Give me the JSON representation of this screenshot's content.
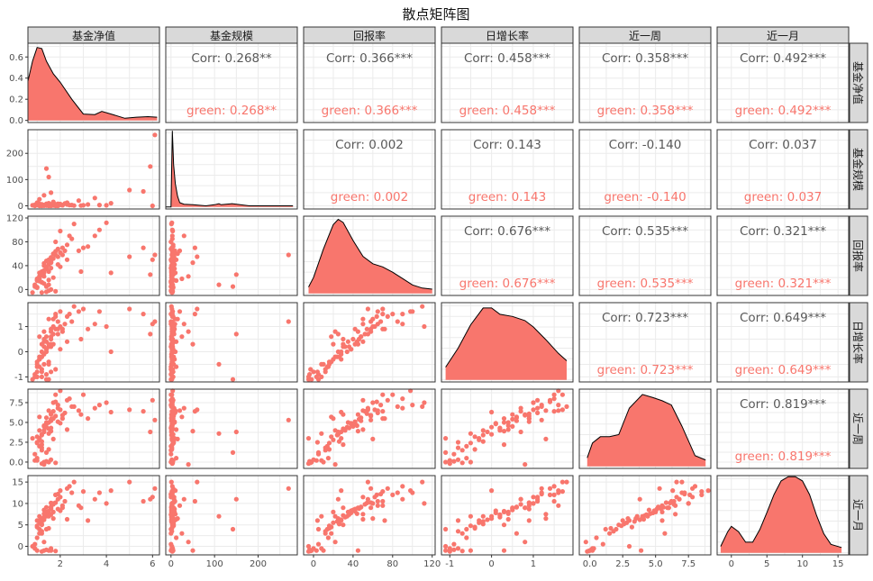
{
  "chart_data": {
    "type": "scatter",
    "title": "散点矩阵图",
    "variables": [
      "基金净值",
      "基金规模",
      "回报率",
      "日增长率",
      "近一周",
      "近一月"
    ],
    "series": [
      {
        "name": "green",
        "color": "#F8766D"
      }
    ],
    "colors": {
      "series": "#F8766D",
      "corr_overall": "#595959",
      "strip_bg": "#D9D9D9",
      "grid": "#EBEBEB",
      "panel_border": "#333333"
    },
    "grid": true,
    "axis_ranges": [
      [
        0.6,
        6.3
      ],
      [
        -12,
        290
      ],
      [
        -10,
        123
      ],
      [
        -1.2,
        1.95
      ],
      [
        -0.8,
        9.2
      ],
      [
        -2,
        16.5
      ]
    ],
    "diag_y_range": [
      -0.02,
      0.73
    ],
    "ticks": {
      "x": [
        [
          2,
          4,
          6
        ],
        [
          0,
          100,
          200
        ],
        [
          0,
          40,
          80,
          120
        ],
        [
          -1,
          0,
          1
        ],
        [
          0.0,
          2.5,
          5.0,
          7.5
        ],
        [
          0,
          5,
          10,
          15
        ]
      ],
      "x_labels": [
        [
          "2",
          "4",
          "6"
        ],
        [
          "0",
          "100",
          "200"
        ],
        [
          "0",
          "40",
          "80",
          "120"
        ],
        [
          "-1",
          "0",
          "1"
        ],
        [
          "0.0",
          "2.5",
          "5.0",
          "7.5"
        ],
        [
          "0",
          "5",
          "10",
          "15"
        ]
      ],
      "diag_y": [
        0.0,
        0.2,
        0.4,
        0.6
      ],
      "diag_y_labels": [
        "0.0",
        "0.2",
        "0.4",
        "0.6"
      ],
      "y": [
        null,
        [
          0,
          100,
          200
        ],
        [
          0,
          40,
          80,
          120
        ],
        [
          -1,
          0,
          1
        ],
        [
          0.0,
          2.5,
          5.0,
          7.5
        ],
        [
          0,
          5,
          10,
          15
        ]
      ],
      "y_labels": [
        null,
        [
          "0",
          "100",
          "200"
        ],
        [
          "0",
          "40",
          "80",
          "120"
        ],
        [
          "-1",
          "0",
          "1"
        ],
        [
          "0.0",
          "2.5",
          "5.0",
          "7.5"
        ],
        [
          "0",
          "5",
          "10",
          "15"
        ]
      ]
    },
    "correlations": [
      {
        "row": 0,
        "col": 1,
        "corr": "Corr: 0.268**",
        "group": "green: 0.268**"
      },
      {
        "row": 0,
        "col": 2,
        "corr": "Corr: 0.366***",
        "group": "green: 0.366***"
      },
      {
        "row": 0,
        "col": 3,
        "corr": "Corr: 0.458***",
        "group": "green: 0.458***"
      },
      {
        "row": 0,
        "col": 4,
        "corr": "Corr: 0.358***",
        "group": "green: 0.358***"
      },
      {
        "row": 0,
        "col": 5,
        "corr": "Corr: 0.492***",
        "group": "green: 0.492***"
      },
      {
        "row": 1,
        "col": 2,
        "corr": "Corr: 0.002",
        "group": "green: 0.002"
      },
      {
        "row": 1,
        "col": 3,
        "corr": "Corr: 0.143",
        "group": "green: 0.143"
      },
      {
        "row": 1,
        "col": 4,
        "corr": "Corr: -0.140",
        "group": "green: -0.140"
      },
      {
        "row": 1,
        "col": 5,
        "corr": "Corr: 0.037",
        "group": "green: 0.037"
      },
      {
        "row": 2,
        "col": 3,
        "corr": "Corr: 0.676***",
        "group": "green: 0.676***"
      },
      {
        "row": 2,
        "col": 4,
        "corr": "Corr: 0.535***",
        "group": "green: 0.535***"
      },
      {
        "row": 2,
        "col": 5,
        "corr": "Corr: 0.321***",
        "group": "green: 0.321***"
      },
      {
        "row": 3,
        "col": 4,
        "corr": "Corr: 0.723***",
        "group": "green: 0.723***"
      },
      {
        "row": 3,
        "col": 5,
        "corr": "Corr: 0.649***",
        "group": "green: 0.649***"
      },
      {
        "row": 4,
        "col": 5,
        "corr": "Corr: 0.819***",
        "group": "green: 0.819***"
      }
    ],
    "densities": [
      {
        "x": [
          0.6,
          0.8,
          1.0,
          1.2,
          1.4,
          1.7,
          2.0,
          2.5,
          3.0,
          3.5,
          3.8,
          4.2,
          4.8,
          5.3,
          5.8,
          6.2
        ],
        "y": [
          0.37,
          0.56,
          0.69,
          0.68,
          0.56,
          0.44,
          0.36,
          0.2,
          0.06,
          0.055,
          0.085,
          0.06,
          0.02,
          0.03,
          0.035,
          0.03
        ]
      },
      {
        "x": [
          -12,
          0,
          3,
          6,
          10,
          15,
          20,
          30,
          50,
          80,
          100,
          110,
          115,
          140,
          180,
          230,
          280
        ],
        "y": [
          0.0,
          0.0,
          0.72,
          0.4,
          0.22,
          0.1,
          0.04,
          0.025,
          0.02,
          0.01,
          0.02,
          0.03,
          0.02,
          0.03,
          0.01,
          0.01,
          0.01
        ]
      },
      {
        "x": [
          -5,
          0,
          10,
          20,
          25,
          30,
          40,
          50,
          60,
          70,
          80,
          90,
          100,
          110,
          120
        ],
        "y": [
          0.06,
          0.15,
          0.42,
          0.65,
          0.7,
          0.67,
          0.5,
          0.35,
          0.28,
          0.25,
          0.2,
          0.14,
          0.08,
          0.05,
          0.04
        ]
      },
      {
        "x": [
          -1.1,
          -0.8,
          -0.5,
          -0.2,
          0.0,
          0.2,
          0.5,
          0.8,
          1.0,
          1.3,
          1.6,
          1.8
        ],
        "y": [
          0.12,
          0.3,
          0.52,
          0.68,
          0.68,
          0.62,
          0.6,
          0.56,
          0.5,
          0.38,
          0.25,
          0.18
        ]
      },
      {
        "x": [
          -0.2,
          0.2,
          0.8,
          1.5,
          2.2,
          3.0,
          4.0,
          4.8,
          5.5,
          6.2,
          7.0,
          8.0,
          8.8
        ],
        "y": [
          0.08,
          0.22,
          0.28,
          0.28,
          0.3,
          0.55,
          0.68,
          0.65,
          0.62,
          0.58,
          0.38,
          0.1,
          0.06
        ]
      },
      {
        "x": [
          -1.5,
          -0.5,
          0.0,
          1.0,
          2.0,
          3.0,
          4.0,
          5.0,
          6.0,
          7.0,
          8.0,
          9.0,
          10.0,
          11.0,
          12.0,
          13.0,
          14.0,
          15.5
        ],
        "y": [
          0.06,
          0.2,
          0.25,
          0.2,
          0.1,
          0.1,
          0.22,
          0.38,
          0.55,
          0.68,
          0.72,
          0.72,
          0.68,
          0.55,
          0.35,
          0.18,
          0.08,
          0.05
        ]
      }
    ],
    "observations": [
      [
        1.0,
        5,
        4,
        -0.8,
        2.5,
        6.0
      ],
      [
        1.2,
        3,
        30,
        0.3,
        2.2,
        5.0
      ],
      [
        0.8,
        2,
        -5,
        -1.1,
        3.0,
        0.0
      ],
      [
        1.5,
        10,
        50,
        1.3,
        6.5,
        7.5
      ],
      [
        1.3,
        1,
        10,
        -0.5,
        0.0,
        -1.0
      ],
      [
        1.8,
        0,
        80,
        1.5,
        8.5,
        12.0
      ],
      [
        2.0,
        4,
        98,
        1.6,
        9.0,
        13.0
      ],
      [
        1.1,
        2,
        22,
        -0.2,
        4.0,
        7.0
      ],
      [
        1.4,
        8,
        35,
        0.4,
        5.0,
        8.0
      ],
      [
        1.6,
        6,
        45,
        0.8,
        6.0,
        9.0
      ],
      [
        1.0,
        12,
        15,
        -0.6,
        0.5,
        2.0
      ],
      [
        1.7,
        3,
        60,
        1.0,
        7.5,
        10.0
      ],
      [
        2.1,
        2,
        70,
        0.9,
        5.5,
        9.5
      ],
      [
        1.2,
        5,
        25,
        0.0,
        3.5,
        6.5
      ],
      [
        0.9,
        0,
        5,
        -0.9,
        1.0,
        0.5
      ],
      [
        1.3,
        1,
        40,
        0.5,
        4.5,
        8.5
      ],
      [
        1.9,
        7,
        55,
        0.7,
        6.8,
        11.0
      ],
      [
        1.1,
        2,
        20,
        -0.3,
        2.8,
        5.5
      ],
      [
        2.5,
        3,
        85,
        1.2,
        7.0,
        12.5
      ],
      [
        1.5,
        4,
        30,
        0.2,
        4.2,
        7.2
      ],
      [
        1.2,
        0,
        12,
        -0.7,
        1.5,
        3.0
      ],
      [
        1.6,
        1,
        48,
        0.6,
        5.2,
        9.2
      ],
      [
        2.2,
        9,
        65,
        1.1,
        6.2,
        10.5
      ],
      [
        1.0,
        3,
        18,
        -0.4,
        3.2,
        4.5
      ],
      [
        1.4,
        2,
        38,
        0.1,
        4.8,
        7.8
      ],
      [
        1.8,
        6,
        58,
        0.9,
        5.8,
        10.2
      ],
      [
        1.3,
        1,
        28,
        -0.1,
        3.8,
        6.2
      ],
      [
        0.9,
        4,
        8,
        -1.0,
        0.2,
        -0.5
      ],
      [
        1.7,
        2,
        52,
        0.7,
        6.4,
        9.8
      ],
      [
        2.3,
        5,
        75,
        1.4,
        7.8,
        13.5
      ],
      [
        1.1,
        0,
        14,
        -0.6,
        2.0,
        4.0
      ],
      [
        1.5,
        3,
        42,
        0.3,
        5.0,
        8.2
      ],
      [
        2.0,
        7,
        62,
        1.0,
        6.6,
        11.5
      ],
      [
        1.2,
        1,
        24,
        -0.2,
        3.4,
        5.8
      ],
      [
        1.6,
        4,
        46,
        0.5,
        5.4,
        8.8
      ],
      [
        1.4,
        2,
        34,
        0.0,
        4.4,
        7.0
      ],
      [
        1.9,
        0,
        68,
        1.2,
        7.2,
        12.2
      ],
      [
        1.0,
        6,
        16,
        -0.5,
        2.4,
        4.8
      ],
      [
        2.4,
        3,
        90,
        1.5,
        8.0,
        14.0
      ],
      [
        1.3,
        1,
        32,
        0.2,
        4.0,
        6.8
      ],
      [
        1.5,
        0,
        -2,
        -1.1,
        0.0,
        -1.0
      ],
      [
        1.2,
        3,
        -5,
        -1.0,
        -0.2,
        -1.2
      ],
      [
        1.4,
        1,
        -4,
        -0.9,
        0.1,
        -0.8
      ],
      [
        1.6,
        2,
        0,
        -0.8,
        0.3,
        -0.5
      ],
      [
        1.0,
        5,
        3,
        -1.0,
        0.2,
        -1.0
      ],
      [
        1.8,
        4,
        -3,
        -0.7,
        -0.1,
        -1.1
      ],
      [
        1.7,
        1,
        20,
        0.3,
        5.5,
        8.0
      ],
      [
        2.1,
        2,
        58,
        0.8,
        5.9,
        9.0
      ],
      [
        1.1,
        8,
        28,
        -0.3,
        3.0,
        6.0
      ],
      [
        1.3,
        3,
        44,
        0.4,
        4.6,
        7.6
      ],
      [
        1.6,
        0,
        36,
        0.2,
        4.3,
        7.4
      ],
      [
        1.2,
        2,
        12,
        -0.8,
        1.8,
        3.5
      ],
      [
        2.8,
        20,
        65,
        1.6,
        6.5,
        9.5
      ],
      [
        3.0,
        2,
        70,
        1.7,
        8.5,
        12.8
      ],
      [
        2.6,
        1,
        110,
        1.8,
        7.0,
        15.0
      ],
      [
        3.2,
        5,
        72,
        0.9,
        5.5,
        6.0
      ],
      [
        3.5,
        30,
        90,
        1.1,
        6.8,
        11.0
      ],
      [
        3.7,
        3,
        100,
        1.6,
        7.2,
        12.5
      ],
      [
        4.0,
        2,
        112,
        1.0,
        7.5,
        10.0
      ],
      [
        2.9,
        1,
        30,
        0.5,
        6.0,
        9.0
      ],
      [
        4.2,
        10,
        28,
        0.0,
        6.3,
        13.0
      ],
      [
        5.0,
        60,
        55,
        1.7,
        6.6,
        15.0
      ],
      [
        5.6,
        55,
        70,
        1.5,
        6.4,
        10.5
      ],
      [
        5.9,
        150,
        25,
        0.7,
        3.8,
        11.0
      ],
      [
        6.1,
        270,
        58,
        1.2,
        5.3,
        13.5
      ],
      [
        6.0,
        0,
        50,
        1.1,
        7.8,
        11.5
      ],
      [
        1.5,
        110,
        8,
        -0.5,
        3.6,
        7.0
      ],
      [
        1.4,
        142,
        5,
        -1.1,
        1.2,
        4.0
      ],
      [
        1.3,
        40,
        22,
        0.8,
        -0.3,
        1.0
      ],
      [
        1.6,
        50,
        45,
        0.3,
        3.9,
        -1.0
      ],
      [
        1.1,
        25,
        18,
        0.6,
        5.7,
        3.0
      ],
      [
        1.7,
        15,
        60,
        1.3,
        2.9,
        6.5
      ],
      [
        1.9,
        8,
        42,
        0.9,
        5.1,
        8.7
      ],
      [
        2.3,
        12,
        50,
        0.4,
        4.1,
        6.3
      ],
      [
        1.2,
        6,
        26,
        -0.2,
        2.6,
        5.2
      ],
      [
        1.5,
        2,
        16,
        -0.4,
        1.6,
        4.2
      ],
      [
        1.8,
        3,
        64,
        1.4,
        7.6,
        12.0
      ],
      [
        2.0,
        5,
        38,
        0.1,
        4.9,
        8.3
      ],
      [
        1.4,
        1,
        48,
        0.6,
        5.6,
        9.1
      ],
      [
        1.6,
        4,
        54,
        0.9,
        6.1,
        10.1
      ]
    ]
  }
}
